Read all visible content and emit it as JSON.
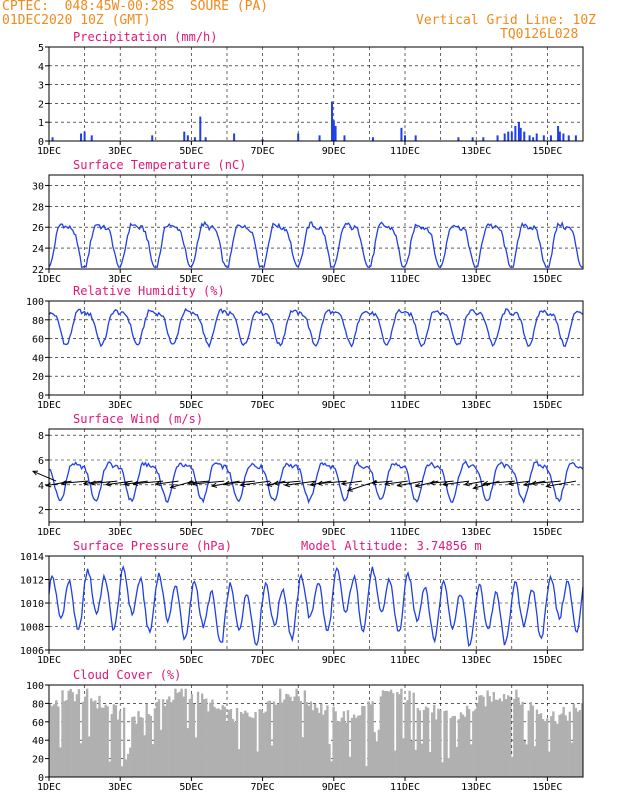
{
  "header": {
    "line1": "CPTEC:  048:45W-00:28S  SOURE (PA)",
    "line2": "01DEC2020 10Z (GMT)",
    "grid_note": "Vertical Grid Line: 10Z",
    "code": "TQ0126L028"
  },
  "x_ticks": [
    "1DEC",
    "3DEC",
    "5DEC",
    "7DEC",
    "9DEC",
    "11DEC",
    "13DEC",
    "15DEC"
  ],
  "colors": {
    "title": "#e0177a",
    "header": "#f08a1c",
    "series": "#1f3fe8",
    "cloud": "#b0b0b0"
  },
  "chart_data": [
    {
      "type": "bar",
      "title": "Precipitation (mm/h)",
      "ylim": [
        0,
        5
      ],
      "yticks": [
        "0",
        "1",
        "2",
        "3",
        "4",
        "5"
      ],
      "x_unit": "days since 01DEC 10Z",
      "x_range": [
        0,
        15
      ],
      "events": [
        [
          0.1,
          0.2
        ],
        [
          0.9,
          0.4
        ],
        [
          1.0,
          0.5
        ],
        [
          1.2,
          0.3
        ],
        [
          2.9,
          0.3
        ],
        [
          3.8,
          0.5
        ],
        [
          3.9,
          0.3
        ],
        [
          4.1,
          0.2
        ],
        [
          4.25,
          1.3
        ],
        [
          4.4,
          0.2
        ],
        [
          5.2,
          0.4
        ],
        [
          6.0,
          0.1
        ],
        [
          7.0,
          0.4
        ],
        [
          7.6,
          0.3
        ],
        [
          7.95,
          2.1
        ],
        [
          8.0,
          1.1
        ],
        [
          8.05,
          0.8
        ],
        [
          8.3,
          0.3
        ],
        [
          9.1,
          0.2
        ],
        [
          9.9,
          0.7
        ],
        [
          10.0,
          0.3
        ],
        [
          10.3,
          0.3
        ],
        [
          11.5,
          0.2
        ],
        [
          11.9,
          0.2
        ],
        [
          12.2,
          0.2
        ],
        [
          12.6,
          0.3
        ],
        [
          12.8,
          0.4
        ],
        [
          12.9,
          0.5
        ],
        [
          13.0,
          0.5
        ],
        [
          13.1,
          0.8
        ],
        [
          13.2,
          1.0
        ],
        [
          13.25,
          0.7
        ],
        [
          13.35,
          0.5
        ],
        [
          13.5,
          0.3
        ],
        [
          13.6,
          0.2
        ],
        [
          13.7,
          0.4
        ],
        [
          13.9,
          0.3
        ],
        [
          14.1,
          0.3
        ],
        [
          14.3,
          0.8
        ],
        [
          14.35,
          0.5
        ],
        [
          14.45,
          0.4
        ],
        [
          14.6,
          0.3
        ],
        [
          14.8,
          0.3
        ]
      ]
    },
    {
      "type": "line",
      "title": "Surface Temperature (nC)",
      "ylim": [
        22,
        31
      ],
      "yticks": [
        "22",
        "24",
        "26",
        "28",
        "30"
      ],
      "base": 24.7,
      "amp": 2.0,
      "phase": 0.22
    },
    {
      "type": "line",
      "title": "Relative Humidity (%)",
      "ylim": [
        0,
        100
      ],
      "yticks": [
        "0",
        "20",
        "40",
        "60",
        "80",
        "100"
      ],
      "base": 76,
      "amp": 17,
      "phase": 0.72
    },
    {
      "type": "line",
      "title": "Surface Wind (m/s)",
      "ylim": [
        1,
        8.5
      ],
      "yticks": [
        "2",
        "4",
        "6",
        "8"
      ],
      "base": 4.6,
      "amp": 1.4,
      "phase": 0.55,
      "arrows": [
        [
          -1,
          0.3
        ],
        [
          1,
          0.4
        ],
        [
          1,
          0.2
        ],
        [
          1,
          0.3
        ],
        [
          1,
          0.2
        ],
        [
          1,
          0.3
        ],
        [
          1,
          0.3
        ],
        [
          1,
          0.2
        ],
        [
          1,
          0.3
        ],
        [
          1,
          0.6
        ],
        [
          1,
          0.2
        ],
        [
          1,
          0.2
        ],
        [
          1,
          0.4
        ],
        [
          1,
          0.2
        ],
        [
          1,
          0.3
        ],
        [
          1,
          0.5
        ],
        [
          1,
          0.2
        ],
        [
          1,
          0.3
        ],
        [
          1,
          0.4
        ],
        [
          1,
          0.2
        ],
        [
          1,
          0.3
        ],
        [
          1,
          0.7
        ],
        [
          1,
          0.2
        ],
        [
          1,
          0.3
        ],
        [
          1,
          0.4
        ],
        [
          1,
          0.5
        ],
        [
          1,
          0.2
        ],
        [
          1,
          0.3
        ],
        [
          1,
          0.4
        ],
        [
          1,
          0.6
        ],
        [
          1,
          0.2
        ],
        [
          1,
          0.3
        ],
        [
          1,
          0.4
        ],
        [
          1,
          0.2
        ],
        [
          1,
          0.4
        ]
      ]
    },
    {
      "type": "line",
      "title": "Surface Pressure (hPa)",
      "subtitle": "Model Altitude: 3.74856 m",
      "ylim": [
        1006,
        1014
      ],
      "yticks": [
        "1006",
        "1008",
        "1010",
        "1012",
        "1014"
      ],
      "base": 1009.8,
      "amp": 2.0
    },
    {
      "type": "area",
      "title": "Cloud Cover (%)",
      "ylim": [
        0,
        100
      ],
      "yticks": [
        "0",
        "20",
        "40",
        "60",
        "80",
        "100"
      ],
      "base": 78,
      "amp": 30
    }
  ]
}
